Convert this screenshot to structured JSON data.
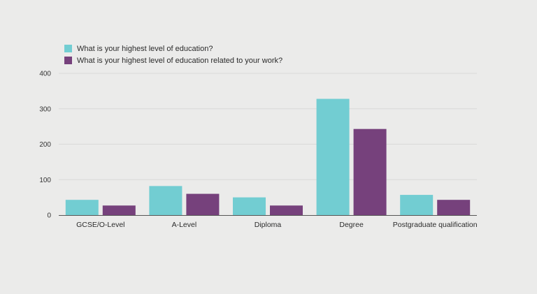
{
  "chart_data": {
    "type": "bar",
    "categories": [
      "GCSE/O-Level",
      "A-Level",
      "Diploma",
      "Degree",
      "Postgraduate qualification"
    ],
    "series": [
      {
        "name": "What is your highest level of education?",
        "color": "#72cdd2",
        "values": [
          43,
          82,
          50,
          328,
          57
        ]
      },
      {
        "name": "What is your highest level of education related to your work?",
        "color": "#76417c",
        "values": [
          27,
          60,
          27,
          243,
          43
        ]
      }
    ],
    "yticks": [
      "0",
      "100",
      "200",
      "300",
      "400"
    ],
    "ylim": [
      0,
      400
    ],
    "grid": true,
    "legend_position": "top-left"
  }
}
